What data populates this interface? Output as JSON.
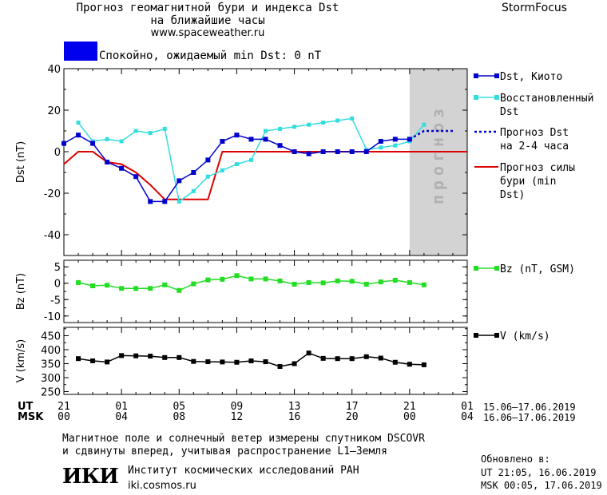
{
  "header": {
    "title_line1": "Прогноз геомагнитной бури и индекса Dst",
    "title_line2": "на ближайшие часы",
    "website": "www.spaceweather.ru",
    "brand": "StormFocus",
    "status_text": "Спокойно, ожидаемый min Dst: 0 nT",
    "status_color": "#0000ee"
  },
  "forecast_band_label": "прогноз",
  "colors": {
    "dst_kyoto": "#0000cc",
    "dst_restored": "#33dddd",
    "dst_forecast": "#0000cc",
    "storm_forecast": "#dd0000",
    "bz": "#22dd22",
    "v": "#000000",
    "forecast_band": "#d3d3d3"
  },
  "chart_data": [
    {
      "type": "line",
      "panel": "dst",
      "ylabel": "Dst (nT)",
      "ylim": [
        -50,
        40
      ],
      "yticks": [
        40,
        20,
        0,
        -20,
        -40
      ],
      "x_unit": "hours since 21 UT 15.06.2019",
      "xlim": [
        0,
        28
      ],
      "forecast_region": [
        24,
        28
      ],
      "series": [
        {
          "name": "Dst, Киото",
          "key": "kyoto",
          "x": [
            0,
            1,
            2,
            3,
            4,
            5,
            6,
            7,
            8,
            9,
            10,
            11,
            12,
            13,
            14,
            15,
            16,
            17,
            18,
            19,
            20,
            21,
            22,
            23,
            24
          ],
          "values": [
            4,
            8,
            4,
            -5,
            -8,
            -12,
            -24,
            -24,
            -14,
            -10,
            -4,
            5,
            8,
            6,
            6,
            3,
            0,
            -1,
            0,
            0,
            0,
            0,
            5,
            6,
            6
          ]
        },
        {
          "name": "Восстановленный Dst",
          "key": "restored",
          "x": [
            1,
            2,
            3,
            4,
            5,
            6,
            7,
            8,
            9,
            10,
            11,
            12,
            13,
            14,
            15,
            16,
            17,
            18,
            19,
            20,
            21,
            22,
            23,
            24,
            25
          ],
          "values": [
            14,
            5,
            6,
            5,
            10,
            9,
            11,
            -24,
            -19,
            -12,
            -9,
            -6,
            -4,
            10,
            11,
            12,
            13,
            14,
            15,
            16,
            1,
            2,
            3,
            5,
            13
          ]
        },
        {
          "name": "Прогноз Dst на 2-4 часа",
          "key": "forecast",
          "x": [
            24,
            24.5,
            25,
            26,
            27
          ],
          "values": [
            6,
            8,
            10,
            10,
            10
          ]
        },
        {
          "name": "Прогноз силы бури (min Dst)",
          "key": "storm",
          "x": [
            0,
            1,
            2,
            3,
            4,
            5,
            6,
            7,
            8,
            9,
            10,
            11,
            12,
            13,
            14,
            15,
            16,
            17,
            18,
            19,
            20,
            21,
            22,
            23,
            24,
            25,
            26,
            27,
            28
          ],
          "values": [
            -6,
            0,
            0,
            -5,
            -6,
            -10,
            -16,
            -23,
            -23,
            -23,
            -23,
            0,
            0,
            0,
            0,
            0,
            0,
            0,
            0,
            0,
            0,
            0,
            0,
            0,
            0,
            0,
            0,
            0,
            0
          ]
        }
      ]
    },
    {
      "type": "line",
      "panel": "bz",
      "ylabel": "Bz (nT)",
      "ylim": [
        -12,
        7
      ],
      "yticks": [
        5,
        0,
        -5,
        -10
      ],
      "series": [
        {
          "name": "Bz (nT, GSM)",
          "key": "bz",
          "x": [
            1,
            2,
            3,
            4,
            5,
            6,
            7,
            8,
            9,
            10,
            11,
            12,
            13,
            14,
            15,
            16,
            17,
            18,
            19,
            20,
            21,
            22,
            23,
            24,
            25
          ],
          "values": [
            0.2,
            -0.8,
            -0.6,
            -1.6,
            -1.6,
            -1.6,
            -0.5,
            -2.2,
            -0.2,
            1.0,
            1.2,
            2.3,
            1.3,
            1.3,
            0.7,
            -0.3,
            0.2,
            0.1,
            0.7,
            0.6,
            -0.3,
            0.4,
            0.9,
            0.2,
            -0.5
          ]
        }
      ]
    },
    {
      "type": "line",
      "panel": "v",
      "ylabel": "V (km/s)",
      "ylim": [
        240,
        480
      ],
      "yticks": [
        450,
        400,
        350,
        300,
        250
      ],
      "ytick_labels": [
        "450",
        "400",
        "350",
        "300",
        "250"
      ],
      "series": [
        {
          "name": "V (km/s)",
          "key": "v",
          "x": [
            1,
            2,
            3,
            4,
            5,
            6,
            7,
            8,
            9,
            10,
            11,
            12,
            13,
            14,
            15,
            16,
            17,
            18,
            19,
            20,
            21,
            22,
            23,
            24,
            25
          ],
          "values": [
            368,
            360,
            356,
            379,
            378,
            377,
            372,
            372,
            358,
            357,
            356,
            355,
            360,
            357,
            340,
            350,
            388,
            369,
            368,
            368,
            375,
            370,
            355,
            348,
            346
          ]
        }
      ]
    }
  ],
  "axis": {
    "ut_label": "UT",
    "msk_label": "MSK",
    "ut_ticks": [
      "21",
      "01",
      "05",
      "09",
      "13",
      "17",
      "21",
      "01"
    ],
    "msk_ticks": [
      "00",
      "04",
      "08",
      "12",
      "16",
      "20",
      "00",
      "04"
    ],
    "ut_range": "15.06–17.06.2019",
    "msk_range": "16.06–17.06.2019"
  },
  "footer": {
    "line1": "Магнитное поле и солнечный ветер измерены спутником DSCOVR",
    "line2": "и сдвинуты вперед, учитывая распространение L1–Земля",
    "institute": "Институт космических исследований РАН",
    "institute_site": "iki.cosmos.ru",
    "logo_text": "ИКИ",
    "updated_label": "Обновлено в:",
    "updated_ut": "UT  21:05, 16.06.2019",
    "updated_msk": "MSK 00:05, 17.06.2019"
  }
}
